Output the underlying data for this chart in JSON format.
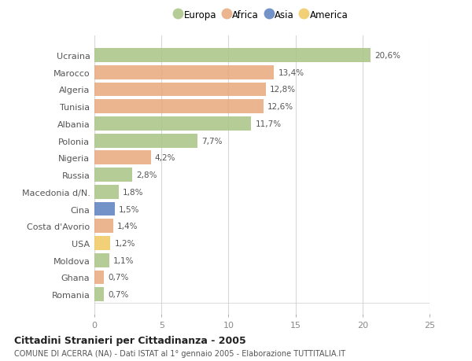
{
  "countries": [
    "Ucraina",
    "Marocco",
    "Algeria",
    "Tunisia",
    "Albania",
    "Polonia",
    "Nigeria",
    "Russia",
    "Macedonia d/N.",
    "Cina",
    "Costa d'Avorio",
    "USA",
    "Moldova",
    "Ghana",
    "Romania"
  ],
  "values": [
    20.6,
    13.4,
    12.8,
    12.6,
    11.7,
    7.7,
    4.2,
    2.8,
    1.8,
    1.5,
    1.4,
    1.2,
    1.1,
    0.7,
    0.7
  ],
  "labels": [
    "20,6%",
    "13,4%",
    "12,8%",
    "12,6%",
    "11,7%",
    "7,7%",
    "4,2%",
    "2,8%",
    "1,8%",
    "1,5%",
    "1,4%",
    "1,2%",
    "1,1%",
    "0,7%",
    "0,7%"
  ],
  "continents": [
    "Europa",
    "Africa",
    "Africa",
    "Africa",
    "Europa",
    "Europa",
    "Africa",
    "Europa",
    "Europa",
    "Asia",
    "Africa",
    "America",
    "Europa",
    "Africa",
    "Europa"
  ],
  "continent_colors": {
    "Europa": "#a8c484",
    "Africa": "#e8a87c",
    "Asia": "#5b7fbe",
    "America": "#f0c860"
  },
  "legend_order": [
    "Europa",
    "Africa",
    "Asia",
    "America"
  ],
  "title": "Cittadini Stranieri per Cittadinanza - 2005",
  "subtitle": "COMUNE DI ACERRA (NA) - Dati ISTAT al 1° gennaio 2005 - Elaborazione TUTTITALIA.IT",
  "xlim": [
    0,
    25
  ],
  "xticks": [
    0,
    5,
    10,
    15,
    20,
    25
  ],
  "bg_color": "#ffffff",
  "grid_color": "#d8d8d8",
  "bar_height": 0.82
}
